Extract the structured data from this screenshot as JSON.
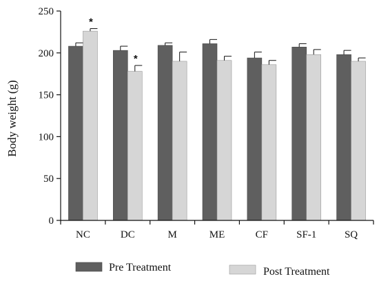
{
  "colors": {
    "pre": "#5f5f5f",
    "post": "#d6d6d6",
    "axis": "#111111"
  },
  "chart_data": {
    "type": "bar",
    "ylabel": "Body weight (g)",
    "xlabel": "",
    "ylim": [
      0,
      250
    ],
    "yticks": [
      0,
      50,
      100,
      150,
      200,
      250
    ],
    "grid": false,
    "legend_position": "bottom",
    "categories": [
      "NC",
      "DC",
      "M",
      "ME",
      "CF",
      "SF-1",
      "SQ"
    ],
    "series": [
      {
        "name": "Pre Treatment",
        "values": [
          208,
          203,
          209,
          211,
          194,
          207,
          198
        ],
        "errors": [
          4,
          5,
          3,
          5,
          7,
          4,
          5
        ]
      },
      {
        "name": "Post Treatment",
        "values": [
          226,
          178,
          190,
          191,
          186,
          198,
          190
        ],
        "errors": [
          3,
          7,
          11,
          5,
          5,
          6,
          4
        ],
        "annotations": [
          "*",
          "*",
          "",
          "",
          "",
          "",
          ""
        ]
      }
    ]
  }
}
